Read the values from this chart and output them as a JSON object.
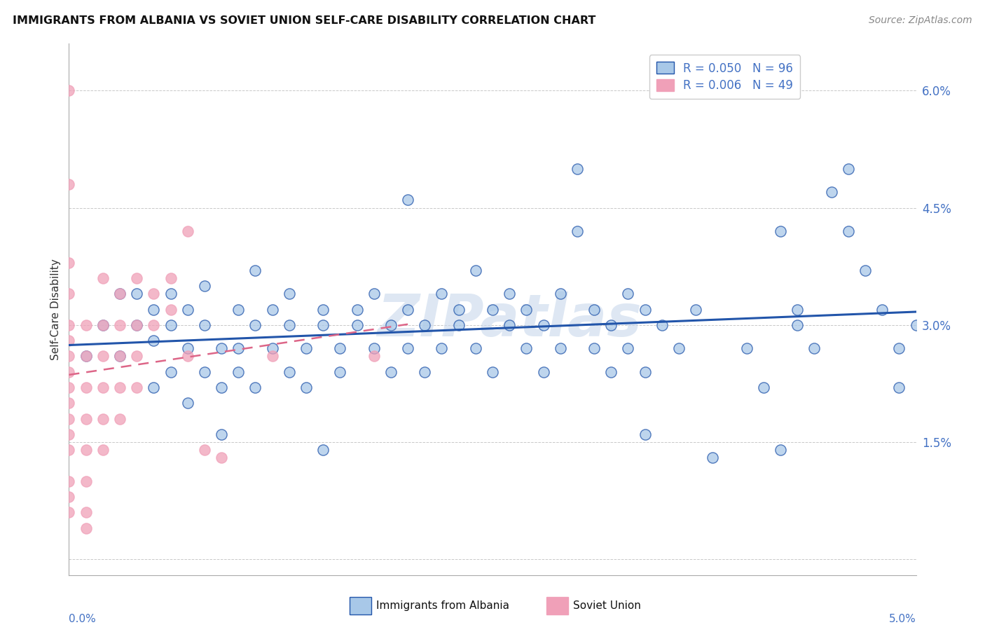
{
  "title": "IMMIGRANTS FROM ALBANIA VS SOVIET UNION SELF-CARE DISABILITY CORRELATION CHART",
  "source": "Source: ZipAtlas.com",
  "ylabel": "Self-Care Disability",
  "xlim": [
    0.0,
    0.05
  ],
  "ylim": [
    -0.002,
    0.066
  ],
  "yticks": [
    0.0,
    0.015,
    0.03,
    0.045,
    0.06
  ],
  "ytick_labels": [
    "",
    "1.5%",
    "3.0%",
    "4.5%",
    "6.0%"
  ],
  "legend_albania_R": "0.050",
  "legend_albania_N": "96",
  "legend_soviet_R": "0.006",
  "legend_soviet_N": "49",
  "albania_color": "#a8c8e8",
  "soviet_color": "#f0a0b8",
  "albania_line_color": "#2255aa",
  "soviet_line_color": "#dd6688",
  "watermark": "ZIPatlas",
  "background_color": "#ffffff",
  "grid_color": "#bbbbbb",
  "albania_scatter": [
    [
      0.001,
      0.026
    ],
    [
      0.002,
      0.03
    ],
    [
      0.003,
      0.034
    ],
    [
      0.003,
      0.026
    ],
    [
      0.004,
      0.03
    ],
    [
      0.004,
      0.034
    ],
    [
      0.005,
      0.022
    ],
    [
      0.005,
      0.028
    ],
    [
      0.005,
      0.032
    ],
    [
      0.006,
      0.024
    ],
    [
      0.006,
      0.03
    ],
    [
      0.006,
      0.034
    ],
    [
      0.007,
      0.027
    ],
    [
      0.007,
      0.032
    ],
    [
      0.007,
      0.02
    ],
    [
      0.008,
      0.024
    ],
    [
      0.008,
      0.03
    ],
    [
      0.008,
      0.035
    ],
    [
      0.009,
      0.022
    ],
    [
      0.009,
      0.027
    ],
    [
      0.009,
      0.016
    ],
    [
      0.01,
      0.032
    ],
    [
      0.01,
      0.027
    ],
    [
      0.01,
      0.024
    ],
    [
      0.011,
      0.03
    ],
    [
      0.011,
      0.037
    ],
    [
      0.011,
      0.022
    ],
    [
      0.012,
      0.032
    ],
    [
      0.012,
      0.027
    ],
    [
      0.013,
      0.024
    ],
    [
      0.013,
      0.03
    ],
    [
      0.013,
      0.034
    ],
    [
      0.014,
      0.027
    ],
    [
      0.014,
      0.022
    ],
    [
      0.015,
      0.032
    ],
    [
      0.015,
      0.03
    ],
    [
      0.015,
      0.014
    ],
    [
      0.016,
      0.027
    ],
    [
      0.016,
      0.024
    ],
    [
      0.017,
      0.032
    ],
    [
      0.017,
      0.03
    ],
    [
      0.018,
      0.034
    ],
    [
      0.018,
      0.027
    ],
    [
      0.019,
      0.024
    ],
    [
      0.019,
      0.03
    ],
    [
      0.02,
      0.032
    ],
    [
      0.02,
      0.027
    ],
    [
      0.021,
      0.024
    ],
    [
      0.021,
      0.03
    ],
    [
      0.022,
      0.034
    ],
    [
      0.022,
      0.027
    ],
    [
      0.023,
      0.032
    ],
    [
      0.023,
      0.03
    ],
    [
      0.024,
      0.037
    ],
    [
      0.024,
      0.027
    ],
    [
      0.025,
      0.032
    ],
    [
      0.025,
      0.024
    ],
    [
      0.026,
      0.03
    ],
    [
      0.026,
      0.034
    ],
    [
      0.027,
      0.027
    ],
    [
      0.027,
      0.032
    ],
    [
      0.028,
      0.024
    ],
    [
      0.028,
      0.03
    ],
    [
      0.029,
      0.034
    ],
    [
      0.029,
      0.027
    ],
    [
      0.03,
      0.05
    ],
    [
      0.03,
      0.042
    ],
    [
      0.031,
      0.032
    ],
    [
      0.031,
      0.027
    ],
    [
      0.032,
      0.024
    ],
    [
      0.032,
      0.03
    ],
    [
      0.033,
      0.034
    ],
    [
      0.033,
      0.027
    ],
    [
      0.034,
      0.032
    ],
    [
      0.034,
      0.016
    ],
    [
      0.034,
      0.024
    ],
    [
      0.035,
      0.03
    ],
    [
      0.037,
      0.032
    ],
    [
      0.038,
      0.013
    ],
    [
      0.04,
      0.027
    ],
    [
      0.041,
      0.022
    ],
    [
      0.042,
      0.042
    ],
    [
      0.043,
      0.032
    ],
    [
      0.043,
      0.03
    ],
    [
      0.044,
      0.027
    ],
    [
      0.046,
      0.05
    ],
    [
      0.046,
      0.042
    ],
    [
      0.047,
      0.037
    ],
    [
      0.048,
      0.032
    ],
    [
      0.049,
      0.027
    ],
    [
      0.049,
      0.022
    ],
    [
      0.05,
      0.03
    ],
    [
      0.042,
      0.014
    ],
    [
      0.036,
      0.027
    ],
    [
      0.02,
      0.046
    ],
    [
      0.045,
      0.047
    ]
  ],
  "soviet_scatter": [
    [
      0.0,
      0.06
    ],
    [
      0.0,
      0.048
    ],
    [
      0.0,
      0.038
    ],
    [
      0.0,
      0.034
    ],
    [
      0.0,
      0.03
    ],
    [
      0.0,
      0.028
    ],
    [
      0.0,
      0.026
    ],
    [
      0.0,
      0.024
    ],
    [
      0.0,
      0.022
    ],
    [
      0.0,
      0.02
    ],
    [
      0.0,
      0.018
    ],
    [
      0.0,
      0.016
    ],
    [
      0.0,
      0.014
    ],
    [
      0.0,
      0.01
    ],
    [
      0.0,
      0.008
    ],
    [
      0.0,
      0.006
    ],
    [
      0.001,
      0.03
    ],
    [
      0.001,
      0.026
    ],
    [
      0.001,
      0.022
    ],
    [
      0.001,
      0.018
    ],
    [
      0.001,
      0.014
    ],
    [
      0.001,
      0.01
    ],
    [
      0.001,
      0.006
    ],
    [
      0.001,
      0.004
    ],
    [
      0.002,
      0.036
    ],
    [
      0.002,
      0.03
    ],
    [
      0.002,
      0.026
    ],
    [
      0.002,
      0.022
    ],
    [
      0.002,
      0.018
    ],
    [
      0.002,
      0.014
    ],
    [
      0.003,
      0.034
    ],
    [
      0.003,
      0.03
    ],
    [
      0.003,
      0.026
    ],
    [
      0.003,
      0.022
    ],
    [
      0.003,
      0.018
    ],
    [
      0.004,
      0.036
    ],
    [
      0.004,
      0.03
    ],
    [
      0.004,
      0.026
    ],
    [
      0.004,
      0.022
    ],
    [
      0.005,
      0.034
    ],
    [
      0.005,
      0.03
    ],
    [
      0.006,
      0.036
    ],
    [
      0.006,
      0.032
    ],
    [
      0.007,
      0.042
    ],
    [
      0.007,
      0.026
    ],
    [
      0.008,
      0.014
    ],
    [
      0.009,
      0.013
    ],
    [
      0.012,
      0.026
    ],
    [
      0.018,
      0.026
    ]
  ],
  "albania_trendline": [
    [
      0.0,
      0.026
    ],
    [
      0.05,
      0.03
    ]
  ],
  "soviet_trendline": [
    [
      0.0,
      0.025
    ],
    [
      0.02,
      0.026
    ]
  ]
}
